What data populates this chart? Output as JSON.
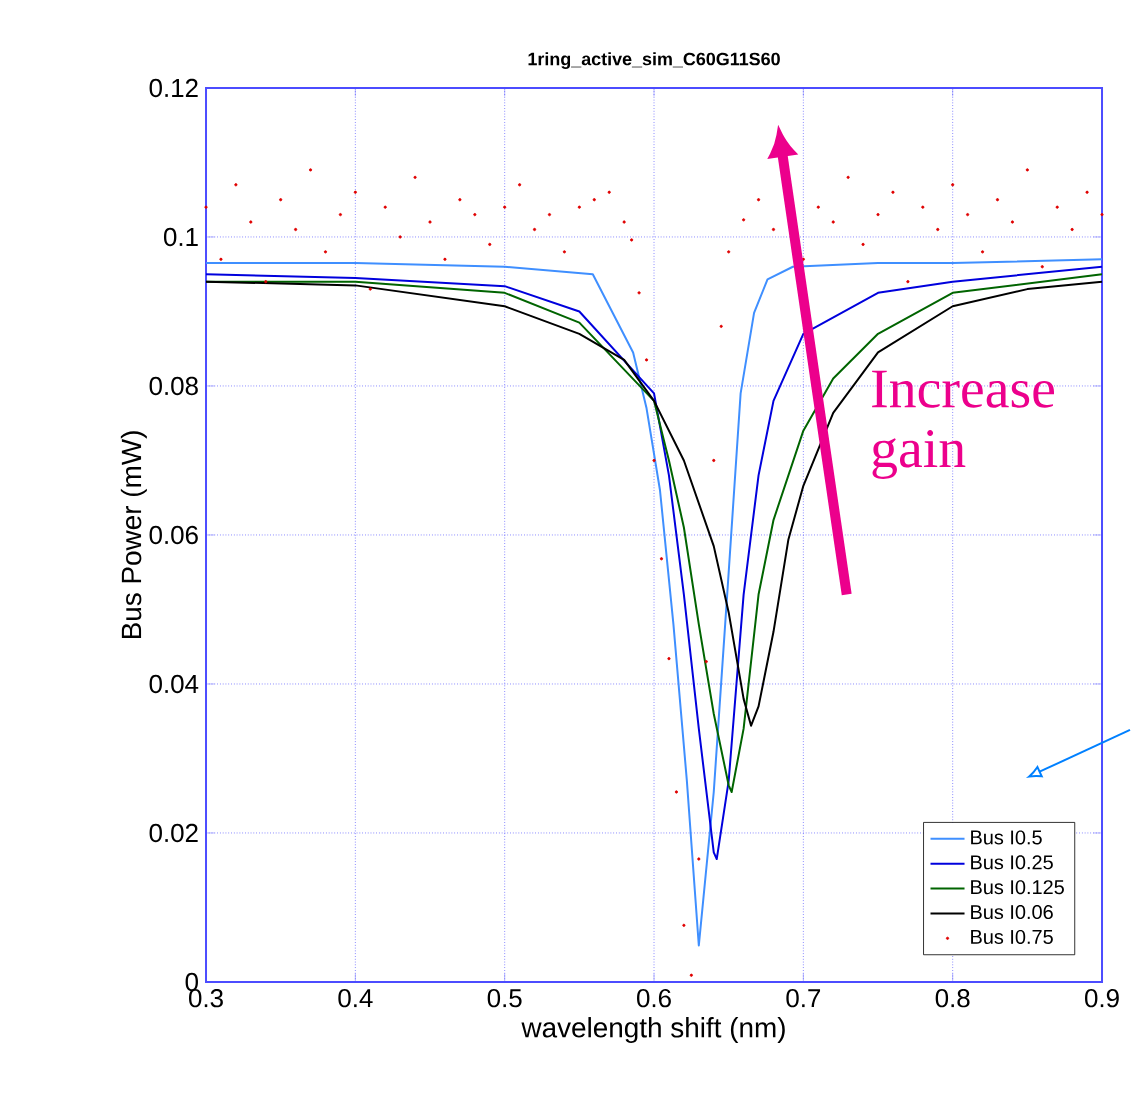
{
  "chart_data": {
    "type": "line",
    "title": "1ring_active_sim_C60G11S60",
    "xlabel": "wavelength shift (nm)",
    "ylabel": "Bus Power (mW)",
    "xlim": [
      0.3,
      0.9
    ],
    "ylim": [
      0,
      0.12
    ],
    "xticks": [
      0.3,
      0.4,
      0.5,
      0.6,
      0.7,
      0.8,
      0.9
    ],
    "yticks": [
      0,
      0.02,
      0.04,
      0.06,
      0.08,
      0.1,
      0.12
    ],
    "grid": true,
    "legend": "bottom right",
    "annotations": [
      "Increase gain"
    ],
    "series": [
      {
        "name": "Bus I0.5",
        "marker": "none",
        "color": "#3f8fff",
        "x": [
          0.3,
          0.4,
          0.5,
          0.559,
          0.586,
          0.595,
          0.604,
          0.613,
          0.622,
          0.63,
          0.64,
          0.649,
          0.658,
          0.667,
          0.676,
          0.693,
          0.75,
          0.8,
          0.9
        ],
        "values": [
          0.0965,
          0.0965,
          0.096,
          0.095,
          0.0845,
          0.077,
          0.066,
          0.048,
          0.027,
          0.0049,
          0.0255,
          0.052,
          0.079,
          0.0898,
          0.0943,
          0.096,
          0.0965,
          0.0965,
          0.097
        ]
      },
      {
        "name": "Bus I0.25",
        "marker": "none",
        "color": "#0000dd",
        "x": [
          0.3,
          0.4,
          0.5,
          0.55,
          0.6,
          0.61,
          0.62,
          0.63,
          0.64,
          0.642,
          0.65,
          0.66,
          0.67,
          0.68,
          0.7,
          0.75,
          0.8,
          0.9
        ],
        "values": [
          0.095,
          0.0945,
          0.0934,
          0.09,
          0.079,
          0.068,
          0.052,
          0.034,
          0.0174,
          0.0165,
          0.027,
          0.052,
          0.068,
          0.078,
          0.087,
          0.0925,
          0.094,
          0.096
        ]
      },
      {
        "name": "Bus I0.125",
        "marker": "none",
        "color": "#006400",
        "x": [
          0.3,
          0.4,
          0.5,
          0.55,
          0.6,
          0.61,
          0.62,
          0.63,
          0.64,
          0.65,
          0.652,
          0.66,
          0.67,
          0.68,
          0.7,
          0.72,
          0.75,
          0.8,
          0.9
        ],
        "values": [
          0.094,
          0.094,
          0.0925,
          0.0885,
          0.078,
          0.07,
          0.061,
          0.048,
          0.036,
          0.0264,
          0.0255,
          0.034,
          0.052,
          0.062,
          0.074,
          0.081,
          0.087,
          0.0925,
          0.095
        ]
      },
      {
        "name": "Bus I0.06",
        "marker": "none",
        "color": "#000000",
        "x": [
          0.3,
          0.4,
          0.5,
          0.55,
          0.58,
          0.6,
          0.62,
          0.64,
          0.65,
          0.66,
          0.665,
          0.67,
          0.68,
          0.69,
          0.7,
          0.72,
          0.75,
          0.8,
          0.85,
          0.9
        ],
        "values": [
          0.094,
          0.0935,
          0.0907,
          0.087,
          0.0835,
          0.078,
          0.07,
          0.0585,
          0.0496,
          0.038,
          0.0344,
          0.037,
          0.047,
          0.0594,
          0.0666,
          0.0764,
          0.0845,
          0.0907,
          0.093,
          0.094
        ]
      },
      {
        "name": "Bus I0.75",
        "type": "scatter",
        "marker": "circle",
        "color": "#e00000",
        "x": [
          0.3,
          0.31,
          0.32,
          0.33,
          0.34,
          0.35,
          0.36,
          0.37,
          0.38,
          0.39,
          0.4,
          0.41,
          0.42,
          0.43,
          0.44,
          0.45,
          0.46,
          0.47,
          0.48,
          0.49,
          0.5,
          0.51,
          0.52,
          0.53,
          0.54,
          0.55,
          0.56,
          0.57,
          0.58,
          0.585,
          0.59,
          0.595,
          0.6,
          0.605,
          0.61,
          0.615,
          0.62,
          0.625,
          0.63,
          0.635,
          0.64,
          0.645,
          0.65,
          0.66,
          0.67,
          0.68,
          0.69,
          0.7,
          0.71,
          0.72,
          0.73,
          0.74,
          0.75,
          0.76,
          0.77,
          0.78,
          0.79,
          0.8,
          0.81,
          0.82,
          0.83,
          0.84,
          0.85,
          0.86,
          0.87,
          0.88,
          0.89,
          0.9
        ],
        "values": [
          0.104,
          0.097,
          0.107,
          0.102,
          0.094,
          0.105,
          0.101,
          0.109,
          0.098,
          0.103,
          0.106,
          0.093,
          0.104,
          0.1,
          0.108,
          0.102,
          0.097,
          0.105,
          0.103,
          0.099,
          0.104,
          0.107,
          0.101,
          0.103,
          0.098,
          0.104,
          0.105,
          0.106,
          0.102,
          0.0996,
          0.0925,
          0.0835,
          0.07,
          0.0568,
          0.0434,
          0.0255,
          0.0076,
          0.0009,
          0.0165,
          0.043,
          0.07,
          0.088,
          0.098,
          0.1023,
          0.105,
          0.101,
          null,
          0.097,
          0.104,
          0.102,
          0.108,
          0.099,
          0.103,
          0.106,
          0.094,
          0.104,
          0.101,
          0.107,
          0.103,
          0.098,
          0.105,
          0.102,
          0.109,
          0.096,
          0.104,
          0.101,
          0.106,
          0.103
        ]
      }
    ]
  }
}
